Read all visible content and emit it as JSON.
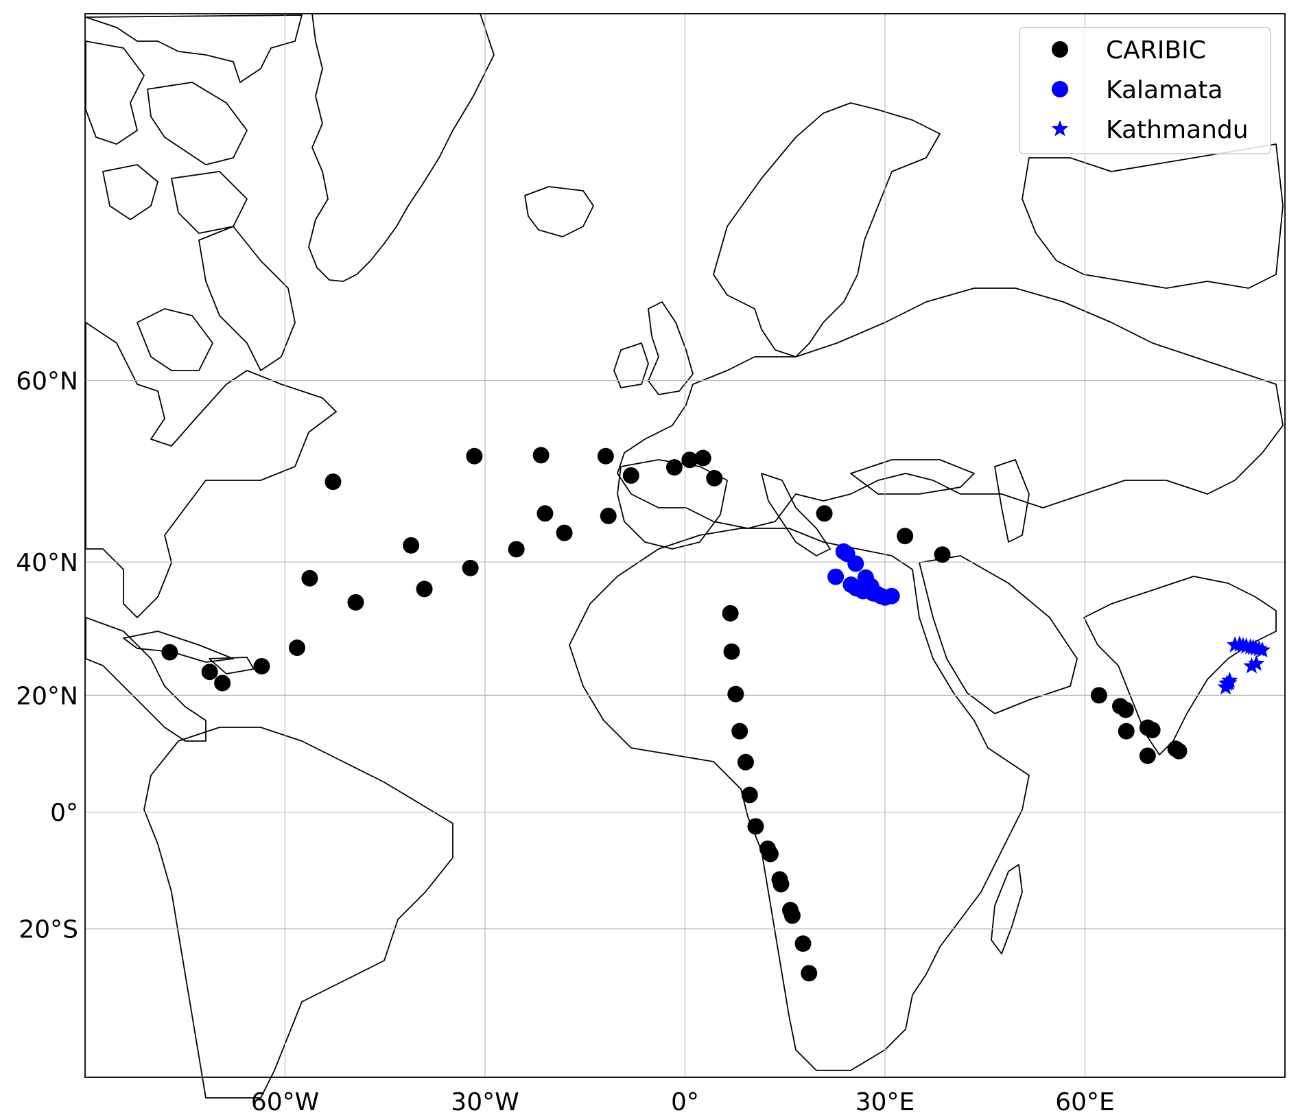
{
  "chart_data": {
    "type": "scatter",
    "projection": "mercator",
    "title": "",
    "xlabel": "",
    "ylabel": "",
    "xlim": [
      -90,
      90
    ],
    "ylim": [
      -42,
      80
    ],
    "grid": true,
    "legend_position": "top-right",
    "x_ticks": [
      {
        "value": -60,
        "label": "60°W"
      },
      {
        "value": -30,
        "label": "30°W"
      },
      {
        "value": 0,
        "label": "0°"
      },
      {
        "value": 30,
        "label": "30°E"
      },
      {
        "value": 60,
        "label": "60°E"
      }
    ],
    "y_ticks": [
      {
        "value": 60,
        "label": "60°N"
      },
      {
        "value": 40,
        "label": "40°N"
      },
      {
        "value": 20,
        "label": "20°N"
      },
      {
        "value": 0,
        "label": "0°"
      },
      {
        "value": -20,
        "label": "20°S"
      }
    ],
    "series": [
      {
        "name": "CARIBIC",
        "marker": "circle",
        "color": "#000000",
        "points": [
          [
            -77.3,
            26.9
          ],
          [
            -71.3,
            23.8
          ],
          [
            -69.4,
            22.0
          ],
          [
            -63.5,
            24.7
          ],
          [
            -58.2,
            27.6
          ],
          [
            -56.3,
            37.8
          ],
          [
            -49.4,
            34.4
          ],
          [
            -52.8,
            49.9
          ],
          [
            -41.1,
            42.2
          ],
          [
            -39.1,
            36.3
          ],
          [
            -32.2,
            39.2
          ],
          [
            -31.6,
            52.7
          ],
          [
            -25.3,
            41.7
          ],
          [
            -21.6,
            52.8
          ],
          [
            -21.0,
            46.2
          ],
          [
            -18.1,
            43.8
          ],
          [
            -11.9,
            52.7
          ],
          [
            -11.5,
            45.9
          ],
          [
            -8.1,
            50.6
          ],
          [
            -1.6,
            51.5
          ],
          [
            0.7,
            52.3
          ],
          [
            2.7,
            52.5
          ],
          [
            4.4,
            50.3
          ],
          [
            20.9,
            46.2
          ],
          [
            33.0,
            43.4
          ],
          [
            38.6,
            41.0
          ],
          [
            6.8,
            32.8
          ],
          [
            7.0,
            27.0
          ],
          [
            7.6,
            20.2
          ],
          [
            8.2,
            14.0
          ],
          [
            9.1,
            8.7
          ],
          [
            9.7,
            3.0
          ],
          [
            10.6,
            -2.5
          ],
          [
            12.4,
            -6.4
          ],
          [
            12.8,
            -7.3
          ],
          [
            14.2,
            -11.7
          ],
          [
            14.4,
            -12.5
          ],
          [
            15.8,
            -16.9
          ],
          [
            16.1,
            -17.8
          ],
          [
            17.7,
            -22.4
          ],
          [
            18.6,
            -27.1
          ],
          [
            62.1,
            20.0
          ],
          [
            65.3,
            18.2
          ],
          [
            66.1,
            17.6
          ],
          [
            66.2,
            14.0
          ],
          [
            69.4,
            14.6
          ],
          [
            70.1,
            14.2
          ],
          [
            69.4,
            9.8
          ],
          [
            73.6,
            11.0
          ],
          [
            74.1,
            10.6
          ]
        ]
      },
      {
        "name": "Kalamata",
        "marker": "circle",
        "color": "#0000ff",
        "points": [
          [
            22.6,
            38.0
          ],
          [
            23.8,
            41.4
          ],
          [
            24.3,
            41.1
          ],
          [
            25.6,
            39.8
          ],
          [
            24.9,
            36.9
          ],
          [
            25.7,
            36.4
          ],
          [
            27.1,
            37.9
          ],
          [
            27.1,
            37.0
          ],
          [
            26.7,
            36.0
          ],
          [
            27.9,
            36.7
          ],
          [
            27.4,
            36.5
          ],
          [
            28.2,
            35.7
          ],
          [
            28.8,
            35.6
          ],
          [
            29.4,
            35.3
          ],
          [
            30.0,
            35.1
          ],
          [
            31.0,
            35.3
          ],
          [
            26.9,
            36.9
          ]
        ]
      },
      {
        "name": "Kathmandu",
        "marker": "star",
        "color": "#0000ff",
        "points": [
          [
            82.5,
            28.0
          ],
          [
            83.2,
            28.1
          ],
          [
            83.7,
            27.9
          ],
          [
            84.2,
            27.8
          ],
          [
            84.8,
            27.7
          ],
          [
            85.2,
            27.6
          ],
          [
            85.6,
            27.5
          ],
          [
            86.1,
            27.4
          ],
          [
            86.6,
            27.2
          ],
          [
            85.0,
            24.7
          ],
          [
            85.7,
            25.1
          ],
          [
            81.7,
            22.4
          ],
          [
            81.3,
            21.9
          ],
          [
            81.6,
            22.0
          ],
          [
            81.1,
            21.3
          ]
        ]
      }
    ],
    "legend": [
      "CARIBIC",
      "Kalamata",
      "Kathmandu"
    ]
  }
}
